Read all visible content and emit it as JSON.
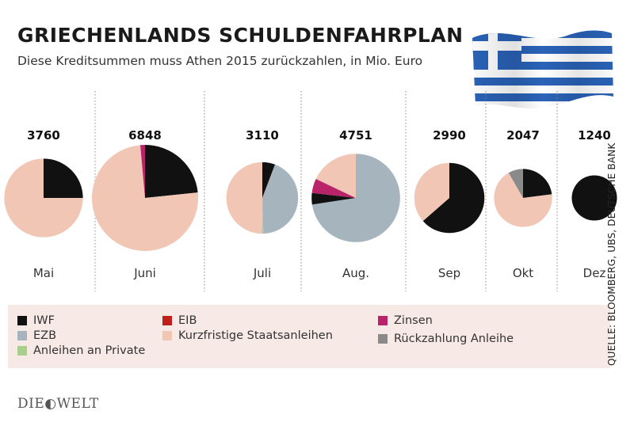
{
  "header": {
    "title": "GRIECHENLANDS SCHULDENFAHRPLAN",
    "subtitle": "Diese Kreditsummen muss Athen 2015 zurückzahlen, in Mio. Euro"
  },
  "source": "QUELLE: BLOOMBERG, UBS, DEUTSCHE BANK",
  "logo": "DIE◐WELT",
  "colors": {
    "IWF": "#111111",
    "EZB": "#a6b4be",
    "Anleihen an Private": "#a9cf8c",
    "EIB": "#c0201c",
    "Kurzfristige Staatsanleihen": "#f1c6b5",
    "Zinsen": "#b8236a",
    "Rückzahlung Anleihe": "#8a8a8a"
  },
  "legend": {
    "items": [
      {
        "label": "IWF",
        "color": "#111111"
      },
      {
        "label": "EZB",
        "color": "#a6b4be"
      },
      {
        "label": "Anleihen an Private",
        "color": "#a9cf8c"
      },
      {
        "label": "EIB",
        "color": "#c0201c"
      },
      {
        "label": "Kurzfristige Staatsanleihen",
        "color": "#f1c6b5"
      },
      {
        "label": "Zinsen",
        "color": "#b8236a"
      },
      {
        "label": "Rückzahlung Anleihe",
        "color": "#8a8a8a"
      }
    ]
  },
  "chart_data": {
    "type": "pie",
    "unit": "Mio. Euro",
    "months": [
      {
        "month": "Mai",
        "total": 3760,
        "slices": [
          {
            "category": "IWF",
            "value": 940
          },
          {
            "category": "Kurzfristige Staatsanleihen",
            "value": 2820
          }
        ]
      },
      {
        "month": "Juni",
        "total": 6848,
        "slices": [
          {
            "category": "IWF",
            "value": 1600
          },
          {
            "category": "Kurzfristige Staatsanleihen",
            "value": 5150
          },
          {
            "category": "Zinsen",
            "value": 98
          }
        ]
      },
      {
        "month": "Juli",
        "total": 3110,
        "slices": [
          {
            "category": "IWF",
            "value": 180
          },
          {
            "category": "EZB",
            "value": 1360
          },
          {
            "category": "Anleihen an Private",
            "value": 20
          },
          {
            "category": "Kurzfristige Staatsanleihen",
            "value": 1550
          }
        ]
      },
      {
        "month": "Aug.",
        "total": 4751,
        "slices": [
          {
            "category": "EZB",
            "value": 3450
          },
          {
            "category": "IWF",
            "value": 200
          },
          {
            "category": "Zinsen",
            "value": 250
          },
          {
            "category": "Kurzfristige Staatsanleihen",
            "value": 851
          }
        ]
      },
      {
        "month": "Sep",
        "total": 2990,
        "slices": [
          {
            "category": "IWF",
            "value": 1900
          },
          {
            "category": "Kurzfristige Staatsanleihen",
            "value": 1090
          }
        ]
      },
      {
        "month": "Okt",
        "total": 2047,
        "slices": [
          {
            "category": "IWF",
            "value": 470
          },
          {
            "category": "Kurzfristige Staatsanleihen",
            "value": 1407
          },
          {
            "category": "Rückzahlung Anleihe",
            "value": 170
          }
        ]
      },
      {
        "month": "Dez",
        "total": 1240,
        "slices": [
          {
            "category": "IWF",
            "value": 1240
          }
        ]
      }
    ]
  }
}
